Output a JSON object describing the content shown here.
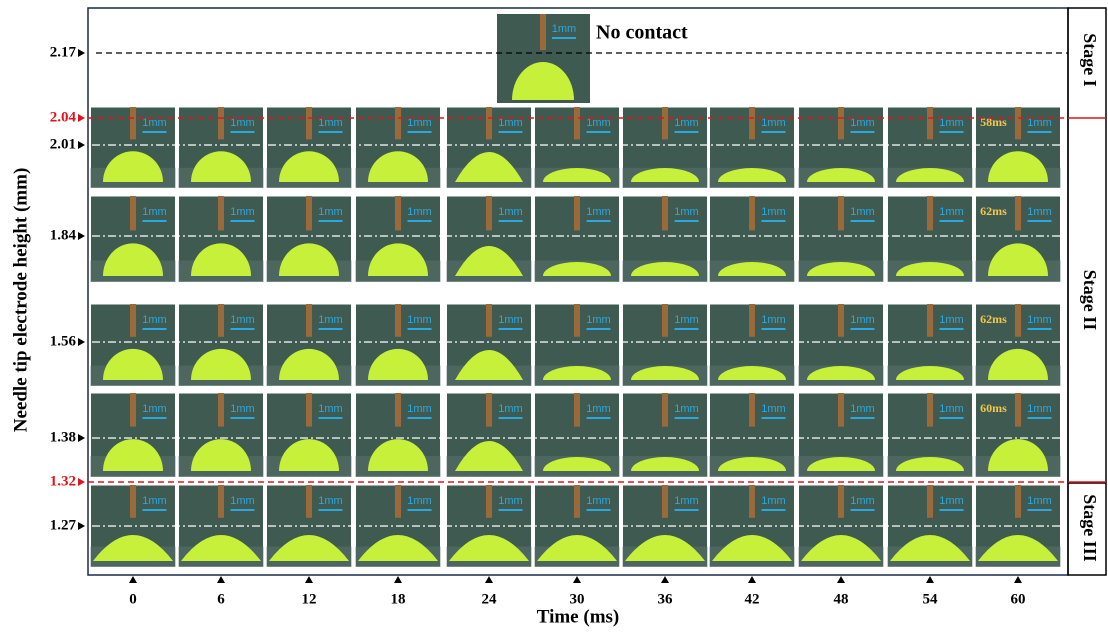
{
  "y_axis_label": "Needle tip electrode height (mm)",
  "x_axis_label": "Time (ms)",
  "height_labels": [
    "2.17",
    "2.04",
    "2.01",
    "1.84",
    "1.56",
    "1.38",
    "1.32",
    "1.27"
  ],
  "time_labels": [
    "0",
    "6",
    "12",
    "18",
    "24",
    "30",
    "36",
    "42",
    "48",
    "54",
    "60"
  ],
  "stages": [
    "Stage I",
    "Stage II",
    "Stage III"
  ],
  "annotations": {
    "no_contact": "No contact",
    "scale_bar": "1mm",
    "row_end_times": [
      "58ms",
      "62ms",
      "62ms",
      "60ms"
    ]
  }
}
